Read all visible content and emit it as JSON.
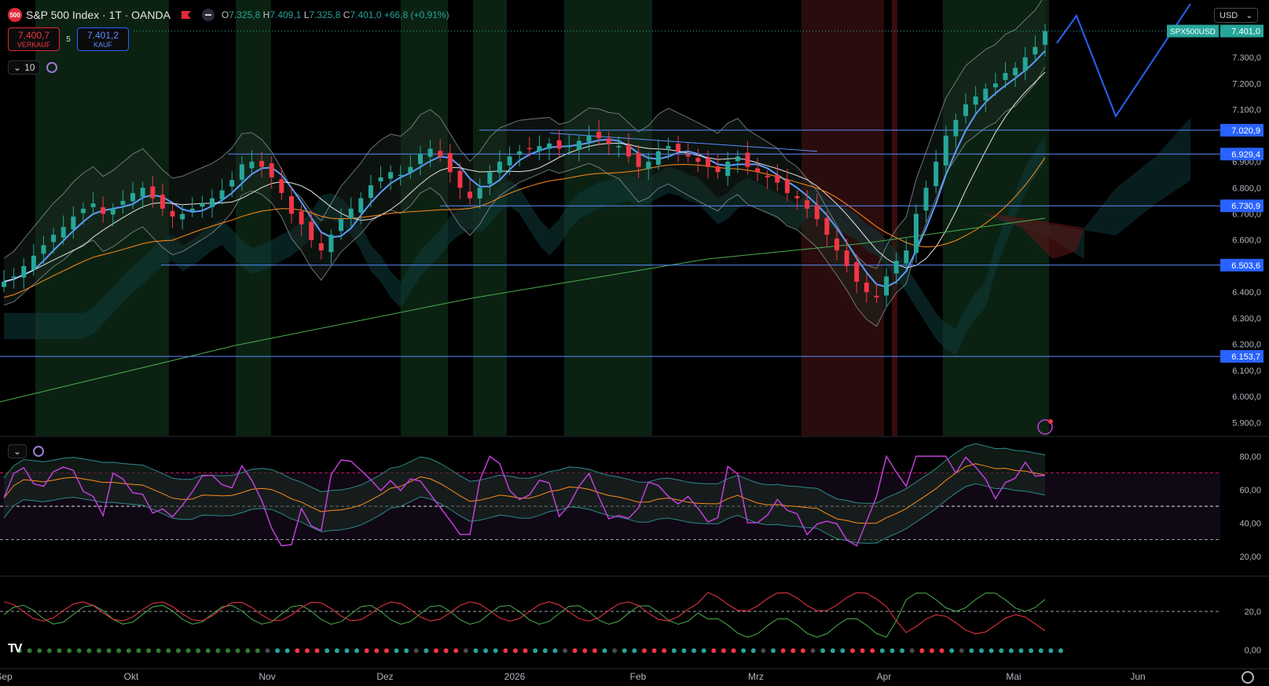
{
  "header": {
    "logo_text": "500",
    "symbol": "S&P 500 Index · 1T · OANDA",
    "ohlc": {
      "o_label": "O",
      "o": "7.325,8",
      "h_label": "H",
      "h": "7.409,1",
      "l_label": "L",
      "l": "7.325,8",
      "c_label": "C",
      "c": "7.401,0",
      "change": "+66,8 (+0,91%)"
    },
    "sell": {
      "price": "7.400,7",
      "label": "VERKAUF"
    },
    "spread": "5",
    "buy": {
      "price": "7.401,2",
      "label": "KAUF"
    },
    "interval_chip": "10",
    "currency": "USD"
  },
  "price_axis": {
    "ticks": [
      "7.300,0",
      "7.200,0",
      "7.100,0",
      "6.900,0",
      "6.800,0",
      "6.700,0",
      "6.600,0",
      "6.400,0",
      "6.300,0",
      "6.200,0",
      "6.100,0",
      "6.000,0",
      "5.900,0"
    ],
    "symbol_tag": "SPX500USD",
    "last_price": "7.401,0",
    "levels": [
      "7.020,9",
      "6.929,4",
      "6.730,9",
      "6.503,6",
      "6.153,7"
    ]
  },
  "rsi_axis": {
    "ticks": [
      "80,00",
      "60,00",
      "40,00",
      "20,00"
    ]
  },
  "dmi_axis": {
    "ticks": [
      "20,0",
      "0,00"
    ]
  },
  "time_axis": {
    "labels": [
      "Sep",
      "Okt",
      "Nov",
      "Dez",
      "2026",
      "Feb",
      "Mrz",
      "Apr",
      "Mai",
      "Jun"
    ]
  },
  "colors": {
    "up": "#26a69a",
    "down": "#f23645",
    "rsi": "#c03fd8",
    "ma": "#ff8c1a",
    "level": "#5b8cff"
  },
  "watermark": "TV",
  "chart_data": {
    "type": "candlestick",
    "title": "S&P 500 Index · 1T · OANDA",
    "ylim": [
      5850,
      7520
    ],
    "levels": [
      7020.9,
      6929.4,
      6730.9,
      6503.6,
      6153.7
    ],
    "close_series_approx": [
      6440,
      6460,
      6500,
      6540,
      6580,
      6620,
      6650,
      6690,
      6720,
      6740,
      6700,
      6720,
      6750,
      6780,
      6800,
      6760,
      6720,
      6690,
      6700,
      6720,
      6740,
      6760,
      6790,
      6830,
      6890,
      6900,
      6880,
      6840,
      6780,
      6700,
      6660,
      6600,
      6560,
      6620,
      6680,
      6720,
      6760,
      6810,
      6840,
      6860,
      6850,
      6880,
      6930,
      6950,
      6920,
      6860,
      6800,
      6760,
      6800,
      6860,
      6900,
      6920,
      6940,
      6950,
      6960,
      6970,
      6950,
      6960,
      6980,
      7000,
      6990,
      6970,
      6960,
      6920,
      6880,
      6900,
      6940,
      6960,
      6940,
      6920,
      6900,
      6880,
      6860,
      6900,
      6920,
      6880,
      6860,
      6840,
      6820,
      6780,
      6760,
      6720,
      6680,
      6620,
      6560,
      6500,
      6440,
      6400,
      6380,
      6460,
      6520,
      6560,
      6700,
      6800,
      6900,
      7000,
      7060,
      7120,
      7150,
      7180,
      7200,
      7240,
      7260,
      7300,
      7340,
      7401
    ]
  }
}
